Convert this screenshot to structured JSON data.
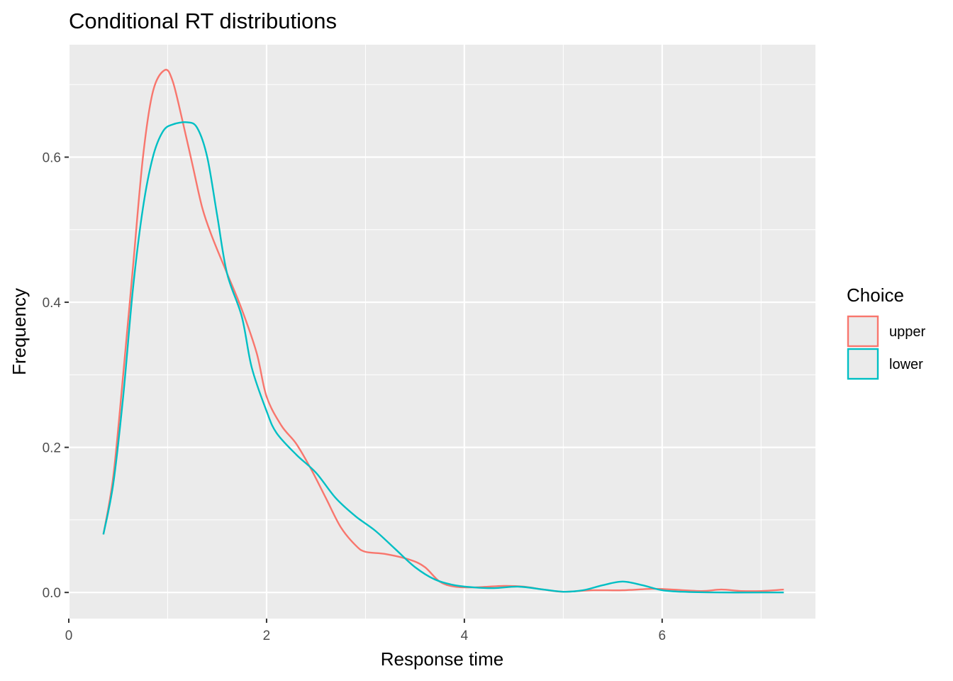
{
  "chart_data": {
    "type": "line",
    "title": "Conditional RT distributions",
    "xlabel": "Response time",
    "ylabel": "Frequency",
    "xlim": [
      0,
      7.55
    ],
    "ylim": [
      -0.036,
      0.755
    ],
    "x_ticks": [
      0,
      2,
      4,
      6
    ],
    "x_minor_ticks": [
      1,
      3,
      5,
      7
    ],
    "y_ticks": [
      0.0,
      0.2,
      0.4,
      0.6
    ],
    "y_minor_ticks": [
      0.1,
      0.3,
      0.5,
      0.7
    ],
    "x_tick_labels": [
      "0",
      "2",
      "4",
      "6"
    ],
    "y_tick_labels": [
      "0.0",
      "0.2",
      "0.4",
      "0.6"
    ],
    "grid": true,
    "panel_background": "#ebebeb",
    "legend": {
      "title": "Choice",
      "position": "right"
    },
    "series": [
      {
        "name": "upper",
        "color": "#f8766d",
        "points": [
          [
            0.35,
            0.08
          ],
          [
            0.45,
            0.16
          ],
          [
            0.55,
            0.3
          ],
          [
            0.65,
            0.45
          ],
          [
            0.75,
            0.6
          ],
          [
            0.85,
            0.69
          ],
          [
            0.97,
            0.72
          ],
          [
            1.05,
            0.705
          ],
          [
            1.15,
            0.65
          ],
          [
            1.25,
            0.59
          ],
          [
            1.35,
            0.53
          ],
          [
            1.45,
            0.49
          ],
          [
            1.6,
            0.44
          ],
          [
            1.75,
            0.39
          ],
          [
            1.9,
            0.33
          ],
          [
            2.0,
            0.27
          ],
          [
            2.15,
            0.23
          ],
          [
            2.3,
            0.205
          ],
          [
            2.45,
            0.17
          ],
          [
            2.6,
            0.13
          ],
          [
            2.75,
            0.09
          ],
          [
            2.9,
            0.065
          ],
          [
            3.0,
            0.056
          ],
          [
            3.2,
            0.053
          ],
          [
            3.45,
            0.045
          ],
          [
            3.6,
            0.035
          ],
          [
            3.75,
            0.015
          ],
          [
            3.9,
            0.008
          ],
          [
            4.1,
            0.007
          ],
          [
            4.4,
            0.009
          ],
          [
            4.6,
            0.008
          ],
          [
            4.8,
            0.004
          ],
          [
            5.0,
            0.001
          ],
          [
            5.3,
            0.003
          ],
          [
            5.6,
            0.003
          ],
          [
            5.9,
            0.005
          ],
          [
            6.1,
            0.004
          ],
          [
            6.4,
            0.002
          ],
          [
            6.6,
            0.004
          ],
          [
            6.8,
            0.002
          ],
          [
            7.0,
            0.002
          ],
          [
            7.23,
            0.004
          ]
        ]
      },
      {
        "name": "lower",
        "color": "#00bfc4",
        "points": [
          [
            0.35,
            0.08
          ],
          [
            0.45,
            0.15
          ],
          [
            0.55,
            0.27
          ],
          [
            0.65,
            0.42
          ],
          [
            0.75,
            0.53
          ],
          [
            0.85,
            0.6
          ],
          [
            0.95,
            0.635
          ],
          [
            1.05,
            0.645
          ],
          [
            1.2,
            0.648
          ],
          [
            1.3,
            0.64
          ],
          [
            1.4,
            0.6
          ],
          [
            1.5,
            0.52
          ],
          [
            1.6,
            0.44
          ],
          [
            1.75,
            0.38
          ],
          [
            1.85,
            0.31
          ],
          [
            2.0,
            0.25
          ],
          [
            2.1,
            0.22
          ],
          [
            2.3,
            0.19
          ],
          [
            2.5,
            0.165
          ],
          [
            2.7,
            0.13
          ],
          [
            2.9,
            0.105
          ],
          [
            3.1,
            0.085
          ],
          [
            3.3,
            0.06
          ],
          [
            3.5,
            0.035
          ],
          [
            3.7,
            0.018
          ],
          [
            3.9,
            0.01
          ],
          [
            4.1,
            0.007
          ],
          [
            4.3,
            0.006
          ],
          [
            4.55,
            0.008
          ],
          [
            4.8,
            0.004
          ],
          [
            5.0,
            0.001
          ],
          [
            5.2,
            0.003
          ],
          [
            5.4,
            0.01
          ],
          [
            5.6,
            0.015
          ],
          [
            5.8,
            0.01
          ],
          [
            6.0,
            0.003
          ],
          [
            6.2,
            0.001
          ],
          [
            6.6,
            0.0
          ],
          [
            7.0,
            0.0
          ],
          [
            7.23,
            0.0
          ]
        ]
      }
    ]
  }
}
